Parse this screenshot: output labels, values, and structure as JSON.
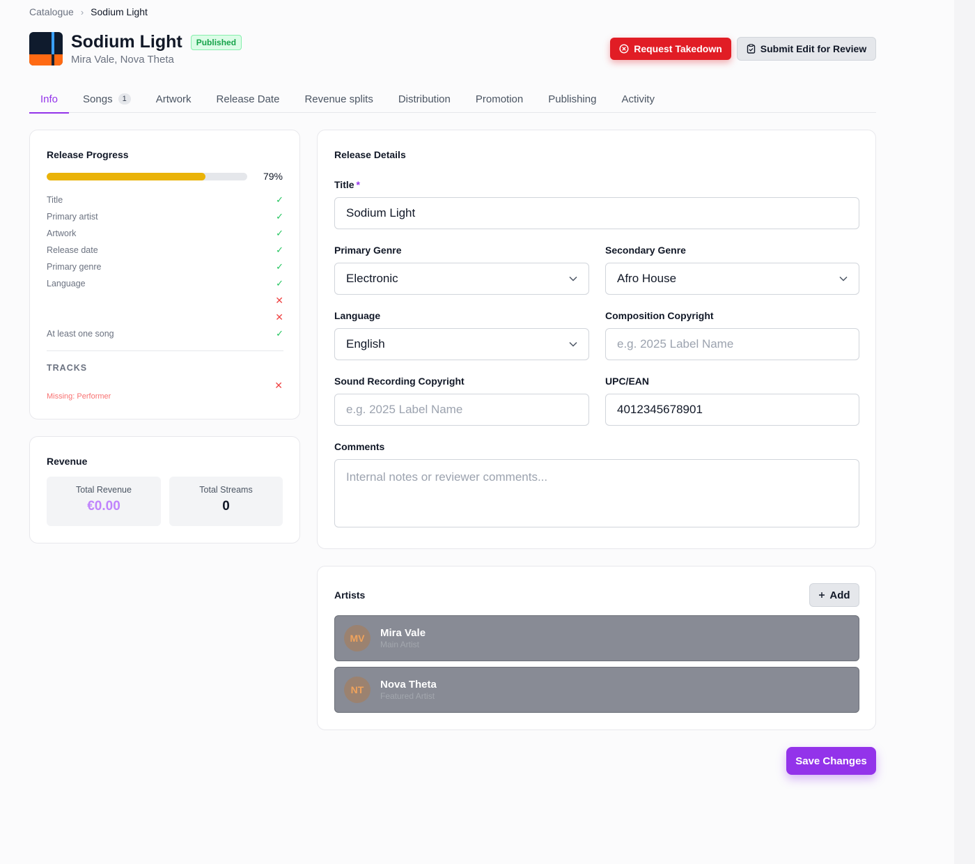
{
  "breadcrumb": {
    "parent": "Catalogue",
    "separator": "›",
    "current": "Sodium Light"
  },
  "release": {
    "title": "Sodium Light",
    "status": "Published",
    "artists": "Mira Vale, Nova Theta"
  },
  "actions": {
    "takedown_label": "Request Takedown",
    "takedown_icon": "circle-x-icon",
    "submit_label": "Submit Edit for Review",
    "submit_icon": "clipboard-icon"
  },
  "tabs": [
    {
      "label": "Info",
      "active": true
    },
    {
      "label": "Songs",
      "count": "1"
    },
    {
      "label": "Artwork"
    },
    {
      "label": "Release Date"
    },
    {
      "label": "Revenue splits"
    },
    {
      "label": "Distribution"
    },
    {
      "label": "Promotion"
    },
    {
      "label": "Publishing"
    },
    {
      "label": "Activity"
    }
  ],
  "progress": {
    "title": "Release Progress",
    "percent_label": "79%",
    "percent_value": 79,
    "items": [
      {
        "label": "Title",
        "status": "✓"
      },
      {
        "label": "Primary artist",
        "status": "✓"
      },
      {
        "label": "Artwork",
        "status": "✓"
      },
      {
        "label": "Release date",
        "status": "✓"
      },
      {
        "label": "Primary genre",
        "status": "✓"
      },
      {
        "label": "Language",
        "status": "✓"
      },
      {
        "label": "",
        "status": "✕"
      },
      {
        "label": "",
        "status": "✕"
      },
      {
        "label": "At least one song",
        "status": "✓"
      }
    ],
    "tracks_heading": "TRACKS",
    "tracks_status": "✕",
    "missing_text": "Missing: Performer"
  },
  "revenue": {
    "title": "Revenue",
    "total_revenue_label": "Total Revenue",
    "total_revenue_value": "€0.00",
    "total_streams_label": "Total Streams",
    "total_streams_value": "0"
  },
  "details": {
    "title": "Release Details",
    "title_label": "Title",
    "required_mark": "*",
    "title_value": "Sodium Light",
    "primary_genre_label": "Primary Genre",
    "primary_genre_value": "Electronic",
    "secondary_genre_label": "Secondary Genre",
    "secondary_genre_value": "Afro House",
    "language_label": "Language",
    "language_value": "English",
    "composition_label": "Composition Copyright",
    "composition_placeholder": "e.g. 2025 Label Name",
    "sound_label": "Sound Recording Copyright",
    "sound_placeholder": "e.g. 2025 Label Name",
    "upc_label": "UPC/EAN",
    "upc_value": "4012345678901",
    "comments_label": "Comments",
    "comments_placeholder": "Internal notes or reviewer comments..."
  },
  "artists_section": {
    "title": "Artists",
    "add_label": "Add",
    "list": [
      {
        "initials": "MV",
        "name": "Mira Vale",
        "role": "Main Artist"
      },
      {
        "initials": "NT",
        "name": "Nova Theta",
        "role": "Featured Artist"
      }
    ]
  },
  "save_label": "Save Changes",
  "colors": {
    "accent": "#9333ea",
    "danger": "#e11d25",
    "progress": "#eab308",
    "success": "#22c55e"
  }
}
